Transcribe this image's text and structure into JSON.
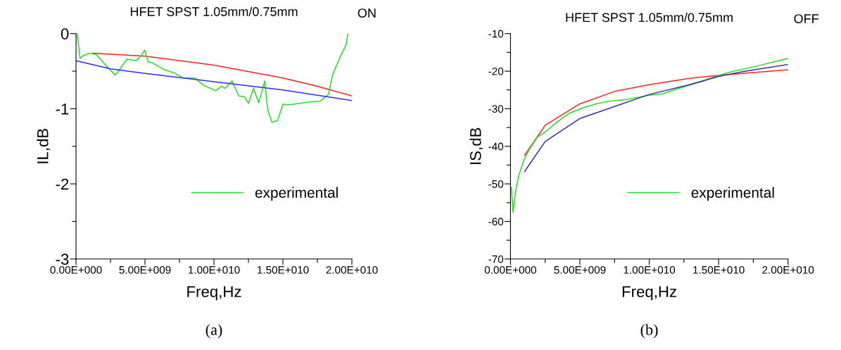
{
  "chart_data": [
    {
      "type": "line",
      "title": "HFET SPST 1.05mm/0.75mm",
      "xlabel": "Freq,Hz",
      "ylabel": "IL,dB",
      "annotations": [
        "ON",
        "(a)"
      ],
      "xlim": [
        0,
        20000000000.0
      ],
      "ylim": [
        -3,
        0
      ],
      "xticks": [
        {
          "value": 0,
          "label": "0.00E+000"
        },
        {
          "value": 2500000000.0,
          "label": null
        },
        {
          "value": 5000000000.0,
          "label": "5.00E+009"
        },
        {
          "value": 7500000000.0,
          "label": null
        },
        {
          "value": 10000000000.0,
          "label": "1.00E+010"
        },
        {
          "value": 12500000000.0,
          "label": null
        },
        {
          "value": 15000000000.0,
          "label": "1.50E+010"
        },
        {
          "value": 17500000000.0,
          "label": null
        },
        {
          "value": 20000000000.0,
          "label": "2.00E+010"
        }
      ],
      "yticks": [
        -3,
        {
          "value": -2.5,
          "label": null
        },
        -2,
        {
          "value": -1.5,
          "label": null
        },
        -1,
        {
          "value": -0.5,
          "label": null
        },
        0
      ],
      "grid": false,
      "legend": "bottom right",
      "series": [
        {
          "color": "#ff2020",
          "x": [
            1200000000.0,
            5000000000.0,
            10000000000.0,
            15000000000.0,
            17500000000.0,
            20000000000.0
          ],
          "values": [
            -0.26,
            -0.3,
            -0.42,
            -0.59,
            -0.7,
            -0.83
          ]
        },
        {
          "name": "experimental",
          "color": "#22e022",
          "x": [
            80000000.0,
            290000000.0,
            460000000.0,
            970000000.0,
            1470000000.0,
            2150000000.0,
            2830000000.0,
            3000000000.0,
            3680000000.0,
            4360000000.0,
            4700000000.0,
            4980000000.0,
            5240000000.0,
            5540000000.0,
            6390000000.0,
            7070000000.0,
            7750000000.0,
            8080000000.0,
            8590000000.0,
            9270000000.0,
            10120000000.0,
            10540000000.0,
            10800000000.0,
            11300000000.0,
            11800000000.0,
            12200000000.0,
            12500000000.0,
            12860000000.0,
            13250000000.0,
            13680000000.0,
            13900000000.0,
            14200000000.0,
            14600000000.0,
            15000000000.0,
            15400000000.0,
            16900000000.0,
            17700000000.0,
            18300000000.0,
            18600000000.0,
            19100000000.0,
            19600000000.0,
            19700000000.0
          ],
          "values": [
            0,
            -0.33,
            -0.3,
            -0.26,
            -0.28,
            -0.42,
            -0.55,
            -0.52,
            -0.34,
            -0.36,
            -0.3,
            -0.22,
            -0.38,
            -0.39,
            -0.48,
            -0.52,
            -0.59,
            -0.59,
            -0.59,
            -0.69,
            -0.76,
            -0.7,
            -0.73,
            -0.63,
            -0.83,
            -0.84,
            -0.93,
            -0.73,
            -0.92,
            -0.63,
            -1.02,
            -1.18,
            -1.16,
            -0.94,
            -0.95,
            -0.91,
            -0.9,
            -0.81,
            -0.55,
            -0.33,
            -0.14,
            0
          ]
        },
        {
          "color": "#2b2bff",
          "x": [
            0,
            2500000000.0,
            5000000000.0,
            10000000000.0,
            15000000000.0,
            20000000000.0
          ],
          "values": [
            -0.36,
            -0.47,
            -0.53,
            -0.64,
            -0.75,
            -0.89
          ]
        }
      ]
    },
    {
      "type": "line",
      "title": "HFET SPST 1.05mm/0.75mm",
      "xlabel": "Freq,Hz",
      "ylabel": "IS,dB",
      "annotations": [
        "OFF",
        "(b)"
      ],
      "xlim": [
        0,
        20000000000.0
      ],
      "ylim": [
        -70,
        -10
      ],
      "xticks": [
        {
          "value": 0,
          "label": "0.00E+000"
        },
        {
          "value": 2500000000.0,
          "label": null
        },
        {
          "value": 5000000000.0,
          "label": "5.00E+009"
        },
        {
          "value": 7500000000.0,
          "label": null
        },
        {
          "value": 10000000000.0,
          "label": "1.00E+010"
        },
        {
          "value": 12500000000.0,
          "label": null
        },
        {
          "value": 15000000000.0,
          "label": "1.50E+010"
        },
        {
          "value": 17500000000.0,
          "label": null
        },
        {
          "value": 20000000000.0,
          "label": "2.00E+010"
        }
      ],
      "yticks": [
        -70,
        {
          "value": -65,
          "label": null
        },
        -60,
        {
          "value": -55,
          "label": null
        },
        -50,
        {
          "value": -45,
          "label": null
        },
        -40,
        {
          "value": -35,
          "label": null
        },
        -30,
        {
          "value": -25,
          "label": null
        },
        -20,
        {
          "value": -15,
          "label": null
        },
        -10
      ],
      "grid": false,
      "legend": "bottom right",
      "series": [
        {
          "color": "#ff2020",
          "x": [
            1020000000.0,
            2500000000.0,
            5000000000.0,
            7500000000.0,
            10000000000.0,
            12900000000.0,
            15000000000.0,
            20000000000.0
          ],
          "values": [
            -42.4,
            -34.4,
            -28.7,
            -25.4,
            -23.6,
            -21.9,
            -21.1,
            -19.6
          ]
        },
        {
          "name": "experimental",
          "color": "#22e022",
          "x": [
            60000000.0,
            190000000.0,
            350000000.0,
            580000000.0,
            960000000.0,
            1350000000.0,
            1930000000.0,
            2500000000.0,
            3300000000.0,
            4240000000.0,
            5200000000.0,
            6170000000.0,
            7100000000.0,
            8300000000.0,
            10000000000.0,
            11000000000.0,
            11950000000.0,
            12900000000.0,
            13900000000.0,
            15000000000.0,
            16000000000.0,
            17700000000.0,
            18700000000.0,
            20000000000.0
          ],
          "values": [
            -50.9,
            -57.6,
            -52.3,
            -48.0,
            -43.7,
            -40.9,
            -37.6,
            -36.2,
            -33.7,
            -31.2,
            -29.8,
            -28.7,
            -28.0,
            -27.6,
            -26.4,
            -26.0,
            -24.8,
            -23.7,
            -22.6,
            -21.1,
            -20.1,
            -18.7,
            -17.8,
            -16.6
          ]
        },
        {
          "color": "#33339f",
          "x": [
            1020000000.0,
            2500000000.0,
            5000000000.0,
            7500000000.0,
            10000000000.0,
            12900000000.0,
            15000000000.0,
            16800000000.0,
            20000000000.0
          ],
          "values": [
            -46.7,
            -38.7,
            -32.6,
            -29.4,
            -26.2,
            -23.6,
            -21.4,
            -20.1,
            -18.2
          ]
        }
      ]
    }
  ]
}
